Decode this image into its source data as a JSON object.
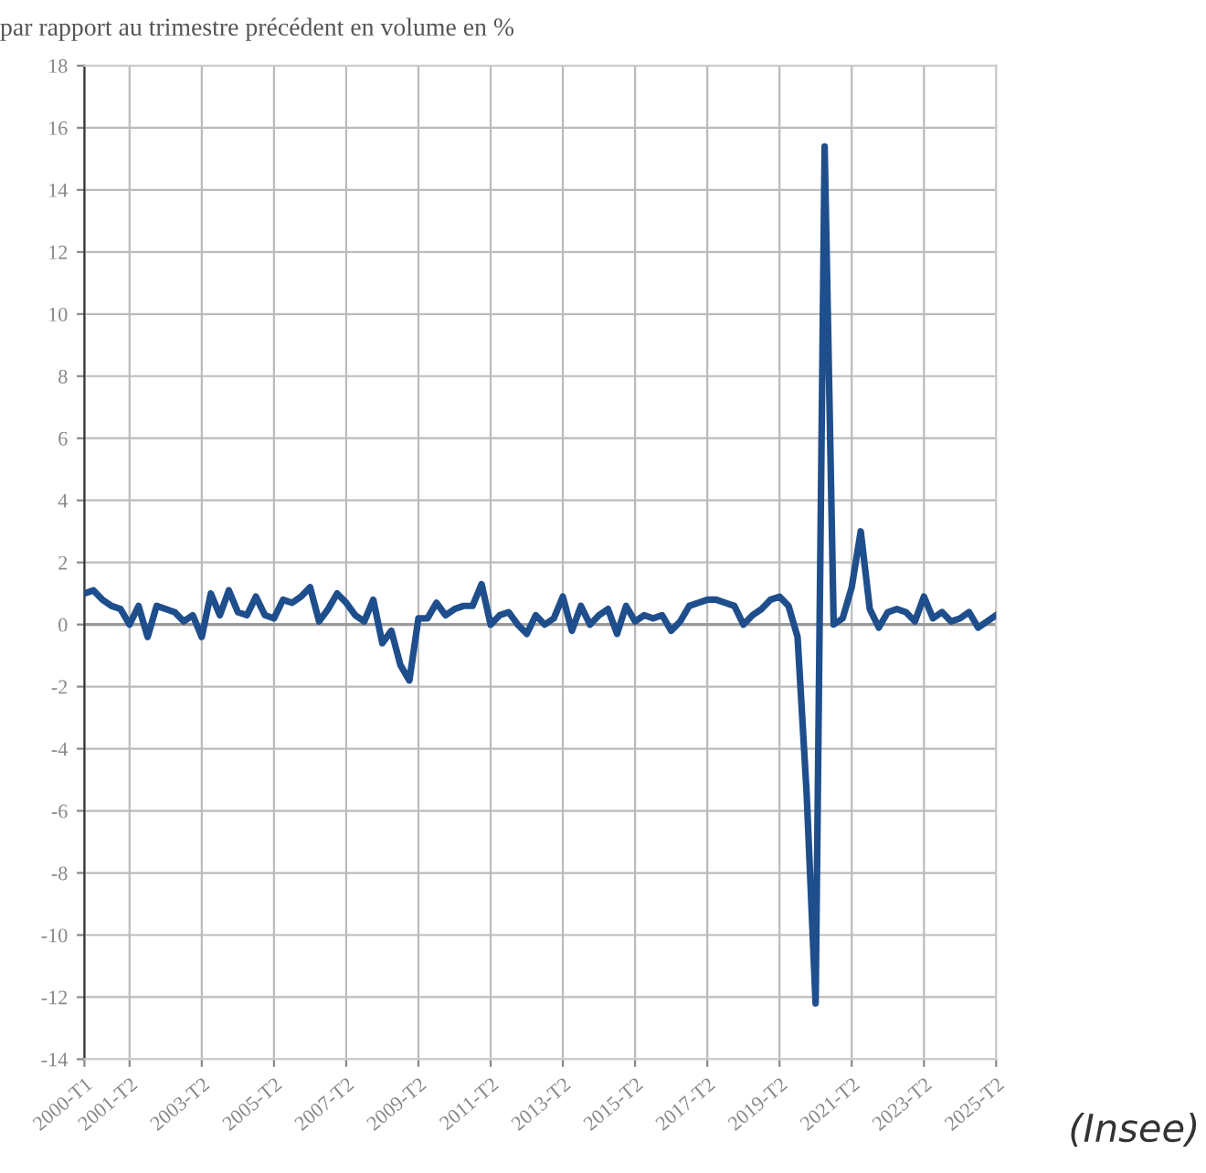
{
  "chart_data": {
    "type": "line",
    "title": "par rapport au trimestre précédent en volume en %",
    "categories": [
      "2000-T1",
      null,
      null,
      null,
      null,
      "2001-T2",
      null,
      null,
      null,
      null,
      null,
      null,
      null,
      "2003-T2",
      null,
      null,
      null,
      null,
      null,
      null,
      null,
      "2005-T2",
      null,
      null,
      null,
      null,
      null,
      null,
      null,
      "2007-T2",
      null,
      null,
      null,
      null,
      null,
      null,
      null,
      "2009-T2",
      null,
      null,
      null,
      null,
      null,
      null,
      null,
      "2011-T2",
      null,
      null,
      null,
      null,
      null,
      null,
      null,
      "2013-T2",
      null,
      null,
      null,
      null,
      null,
      null,
      null,
      "2015-T2",
      null,
      null,
      null,
      null,
      null,
      null,
      null,
      "2017-T2",
      null,
      null,
      null,
      null,
      null,
      null,
      null,
      "2019-T2",
      null,
      null,
      null,
      null,
      null,
      null,
      null,
      "2021-T2",
      null,
      null,
      null,
      null,
      null,
      null,
      null,
      "2023-T2",
      null,
      null,
      null,
      null,
      null,
      null,
      null,
      "2025-T2"
    ],
    "series": [
      {
        "color": "#1f4e8c",
        "values": [
          1.0,
          1.1,
          0.8,
          0.6,
          0.5,
          0.0,
          0.6,
          -0.4,
          0.6,
          0.5,
          0.4,
          0.1,
          0.3,
          -0.4,
          1.0,
          0.3,
          1.1,
          0.4,
          0.3,
          0.9,
          0.3,
          0.2,
          0.8,
          0.7,
          0.9,
          1.2,
          0.1,
          0.5,
          1.0,
          0.7,
          0.3,
          0.1,
          0.8,
          -0.6,
          -0.2,
          -1.3,
          -1.8,
          0.2,
          0.2,
          0.7,
          0.3,
          0.5,
          0.6,
          0.6,
          1.3,
          0.0,
          0.3,
          0.4,
          0.0,
          -0.3,
          0.3,
          0.0,
          0.2,
          0.9,
          -0.2,
          0.6,
          0.0,
          0.3,
          0.5,
          -0.3,
          0.6,
          0.1,
          0.3,
          0.2,
          0.3,
          -0.2,
          0.1,
          0.6,
          0.7,
          0.8,
          0.8,
          0.7,
          0.6,
          0.0,
          0.3,
          0.5,
          0.8,
          0.9,
          0.6,
          -0.4,
          -5.4,
          -12.2,
          15.4,
          0.0,
          0.2,
          1.2,
          3.0,
          0.5,
          -0.1,
          0.4,
          0.5,
          0.4,
          0.1,
          0.9,
          0.2,
          0.4,
          0.1,
          0.2,
          0.4,
          -0.1,
          0.1,
          0.3
        ]
      }
    ],
    "ylim": [
      -14,
      18
    ],
    "yticks": [
      -14,
      -12,
      -10,
      -8,
      -6,
      -4,
      -2,
      0,
      2,
      4,
      6,
      8,
      10,
      12,
      14,
      16,
      18
    ],
    "grid": true,
    "line_style": "solid",
    "marker": "none",
    "annotations": [
      "(Insee)"
    ]
  }
}
